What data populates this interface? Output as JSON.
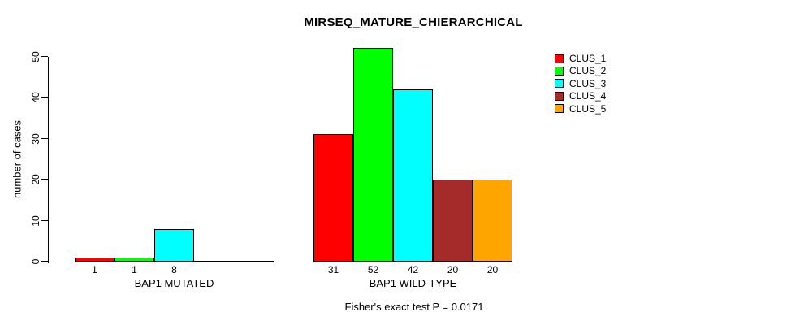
{
  "chart_data": {
    "type": "bar",
    "title": "MIRSEQ_MATURE_CHIERARCHICAL",
    "ylabel": "number of cases",
    "ylim": [
      0,
      50
    ],
    "yticks": [
      0,
      10,
      20,
      30,
      40,
      50
    ],
    "grid": false,
    "legend": {
      "position": "right",
      "entries": [
        {
          "label": "CLUS_1",
          "color": "#FF0000"
        },
        {
          "label": "CLUS_2",
          "color": "#00FF00"
        },
        {
          "label": "CLUS_3",
          "color": "#00FFFF"
        },
        {
          "label": "CLUS_4",
          "color": "#A52A2A"
        },
        {
          "label": "CLUS_5",
          "color": "#FFA500"
        }
      ]
    },
    "groups": [
      {
        "label": "BAP1 MUTATED",
        "slots": 5,
        "bars": [
          {
            "cluster": "CLUS_1",
            "value": 1,
            "color": "#FF0000"
          },
          {
            "cluster": "CLUS_2",
            "value": 1,
            "color": "#00FF00"
          },
          {
            "cluster": "CLUS_3",
            "value": 8,
            "color": "#00FFFF"
          }
        ]
      },
      {
        "label": "BAP1 WILD-TYPE",
        "slots": 5,
        "bars": [
          {
            "cluster": "CLUS_1",
            "value": 31,
            "color": "#FF0000"
          },
          {
            "cluster": "CLUS_2",
            "value": 52,
            "color": "#00FF00"
          },
          {
            "cluster": "CLUS_3",
            "value": 42,
            "color": "#00FFFF"
          },
          {
            "cluster": "CLUS_4",
            "value": 20,
            "color": "#A52A2A"
          },
          {
            "cluster": "CLUS_5",
            "value": 20,
            "color": "#FFA500"
          }
        ]
      }
    ],
    "footnote": "Fisher's exact test P = 0.0171"
  }
}
